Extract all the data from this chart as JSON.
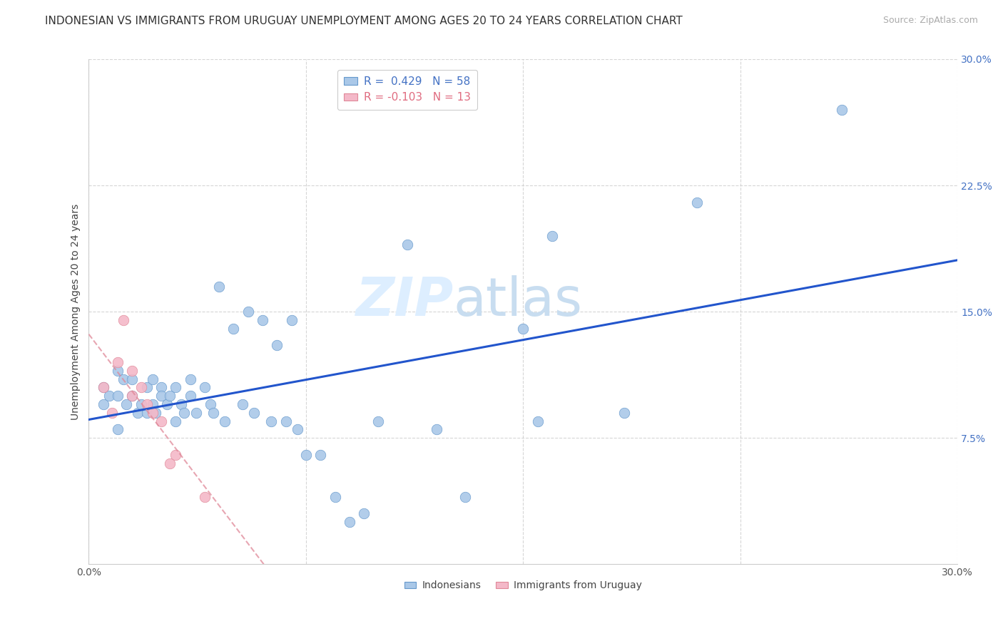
{
  "title": "INDONESIAN VS IMMIGRANTS FROM URUGUAY UNEMPLOYMENT AMONG AGES 20 TO 24 YEARS CORRELATION CHART",
  "source": "Source: ZipAtlas.com",
  "ylabel": "Unemployment Among Ages 20 to 24 years",
  "xlim": [
    0.0,
    0.3
  ],
  "ylim": [
    0.0,
    0.3
  ],
  "xticks": [
    0.0,
    0.075,
    0.15,
    0.225,
    0.3
  ],
  "yticks": [
    0.075,
    0.15,
    0.225,
    0.3
  ],
  "xtick_labels": [
    "0.0%",
    "",
    "",
    "",
    "30.0%"
  ],
  "ytick_labels": [
    "7.5%",
    "15.0%",
    "22.5%",
    "30.0%"
  ],
  "indonesian_x": [
    0.005,
    0.005,
    0.007,
    0.01,
    0.01,
    0.01,
    0.012,
    0.013,
    0.015,
    0.015,
    0.017,
    0.018,
    0.02,
    0.02,
    0.022,
    0.022,
    0.023,
    0.025,
    0.025,
    0.027,
    0.028,
    0.03,
    0.03,
    0.032,
    0.033,
    0.035,
    0.035,
    0.037,
    0.04,
    0.042,
    0.043,
    0.045,
    0.047,
    0.05,
    0.053,
    0.055,
    0.057,
    0.06,
    0.063,
    0.065,
    0.068,
    0.07,
    0.072,
    0.075,
    0.08,
    0.085,
    0.09,
    0.095,
    0.1,
    0.11,
    0.12,
    0.13,
    0.15,
    0.155,
    0.16,
    0.185,
    0.21,
    0.26
  ],
  "indonesian_y": [
    0.105,
    0.095,
    0.1,
    0.115,
    0.1,
    0.08,
    0.11,
    0.095,
    0.11,
    0.1,
    0.09,
    0.095,
    0.105,
    0.09,
    0.11,
    0.095,
    0.09,
    0.105,
    0.1,
    0.095,
    0.1,
    0.105,
    0.085,
    0.095,
    0.09,
    0.11,
    0.1,
    0.09,
    0.105,
    0.095,
    0.09,
    0.165,
    0.085,
    0.14,
    0.095,
    0.15,
    0.09,
    0.145,
    0.085,
    0.13,
    0.085,
    0.145,
    0.08,
    0.065,
    0.065,
    0.04,
    0.025,
    0.03,
    0.085,
    0.19,
    0.08,
    0.04,
    0.14,
    0.085,
    0.195,
    0.09,
    0.215,
    0.27
  ],
  "uruguay_x": [
    0.005,
    0.008,
    0.01,
    0.012,
    0.015,
    0.015,
    0.018,
    0.02,
    0.022,
    0.025,
    0.028,
    0.03,
    0.04
  ],
  "uruguay_y": [
    0.105,
    0.09,
    0.12,
    0.145,
    0.115,
    0.1,
    0.105,
    0.095,
    0.09,
    0.085,
    0.06,
    0.065,
    0.04
  ],
  "dot_size": 110,
  "blue_color": "#aac8e8",
  "blue_edge_color": "#6699cc",
  "pink_color": "#f4b8c8",
  "pink_edge_color": "#e08898",
  "blue_line_color": "#2255cc",
  "pink_line_color": "#e08898",
  "grid_color": "#cccccc",
  "watermark_color": "#ddeeff",
  "background_color": "#ffffff",
  "title_fontsize": 11,
  "label_fontsize": 10,
  "tick_fontsize": 10,
  "source_fontsize": 9
}
